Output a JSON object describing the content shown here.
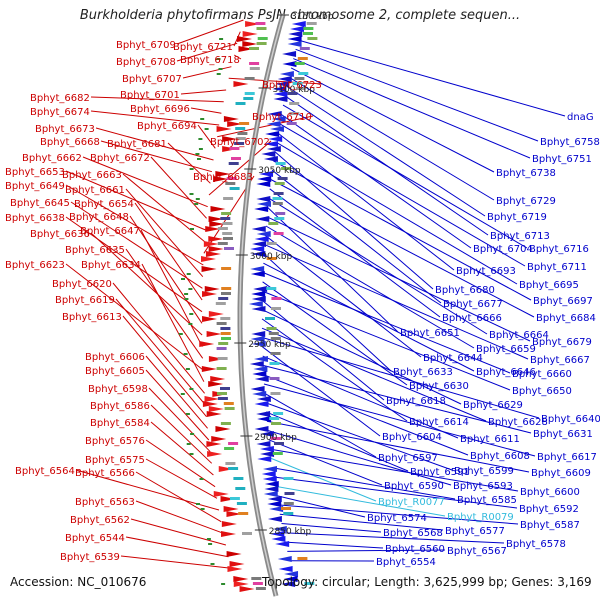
{
  "title": "Burkholderia phytofirmans PsJN chromosome 2, complete sequen...",
  "accession": "Accession: NC_010676",
  "summary": "Topology: circular; Length: 3,625,999 bp; Genes: 3,169",
  "colors": {
    "left_labels": "#cc0000",
    "right_labels": "#0000cc",
    "rna_labels": "#33bbdd",
    "backbone": "#8a8a8a",
    "tick_green": "#2e8b2e"
  },
  "scale": [
    {
      "label": "3150 kbp",
      "bp": 3150000
    },
    {
      "label": "3100 kbp",
      "bp": 3100000
    },
    {
      "label": "3050 kbp",
      "bp": 3050000
    },
    {
      "label": "3000 kbp",
      "bp": 3000000
    },
    {
      "label": "2950 kbp",
      "bp": 2950000
    },
    {
      "label": "2900 kbp",
      "bp": 2900000
    },
    {
      "label": "2850 kbp",
      "bp": 2850000
    }
  ],
  "left_genes": [
    "Bphyt_6709",
    "Bphyt_6721",
    "Bphyt_6708",
    "Bphyt_6718",
    "Bphyt_6707",
    "Bphyt_6723",
    "Bphyt_6701",
    "Bphyt_6682",
    "Bphyt_6696",
    "Bphyt_6674",
    "Bphyt_6710",
    "Bphyt_6694",
    "Bphyt_6673",
    "Bphyt_6668",
    "Bphyt_6681",
    "Bphyt_6702",
    "Bphyt_6662",
    "Bphyt_6672",
    "Bphyt_6653",
    "Bphyt_6663",
    "Bphyt_6683",
    "Bphyt_6649",
    "Bphyt_6661",
    "Bphyt_6645",
    "Bphyt_6654",
    "Bphyt_6638",
    "Bphyt_6648",
    "Bphyt_6636",
    "Bphyt_6647",
    "Bphyt_6635",
    "Bphyt_6623",
    "Bphyt_6634",
    "Bphyt_6620",
    "Bphyt_6619",
    "Bphyt_6613",
    "Bphyt_6606",
    "Bphyt_6605",
    "Bphyt_6598",
    "Bphyt_6586",
    "Bphyt_6584",
    "Bphyt_6576",
    "Bphyt_6575",
    "Bphyt_6564",
    "Bphyt_6566",
    "Bphyt_6563",
    "Bphyt_6562",
    "Bphyt_6544",
    "Bphyt_6539"
  ],
  "right_genes": [
    "dnaG",
    "Bphyt_6758",
    "Bphyt_6751",
    "Bphyt_6738",
    "Bphyt_6729",
    "Bphyt_6719",
    "Bphyt_6713",
    "Bphyt_6716",
    "Bphyt_6704",
    "Bphyt_6711",
    "Bphyt_6693",
    "Bphyt_6695",
    "Bphyt_6680",
    "Bphyt_6697",
    "Bphyt_6677",
    "Bphyt_6684",
    "Bphyt_6666",
    "Bphyt_6664",
    "Bphyt_6651",
    "Bphyt_6679",
    "Bphyt_6659",
    "Bphyt_6644",
    "Bphyt_6667",
    "Bphyt_6633",
    "Bphyt_6646",
    "Bphyt_6660",
    "Bphyt_6630",
    "Bphyt_6650",
    "Bphyt_6618",
    "Bphyt_6629",
    "Bphyt_6614",
    "Bphyt_6628",
    "Bphyt_6640",
    "Bphyt_6604",
    "Bphyt_6611",
    "Bphyt_6631",
    "Bphyt_6608",
    "Bphyt_6617",
    "Bphyt_6597",
    "Bphyt_6599",
    "Bphyt_6591",
    "Bphyt_6609",
    "Bphyt_6593",
    "Bphyt_6590",
    "Bphyt_6600",
    "Bphyt_R0077",
    "Bphyt_6585",
    "Bphyt_6592",
    "Bphyt_R0079",
    "Bphyt_6574",
    "Bphyt_6587",
    "Bphyt_6577",
    "Bphyt_6568",
    "Bphyt_6578",
    "Bphyt_6560",
    "Bphyt_6567",
    "Bphyt_6554"
  ]
}
